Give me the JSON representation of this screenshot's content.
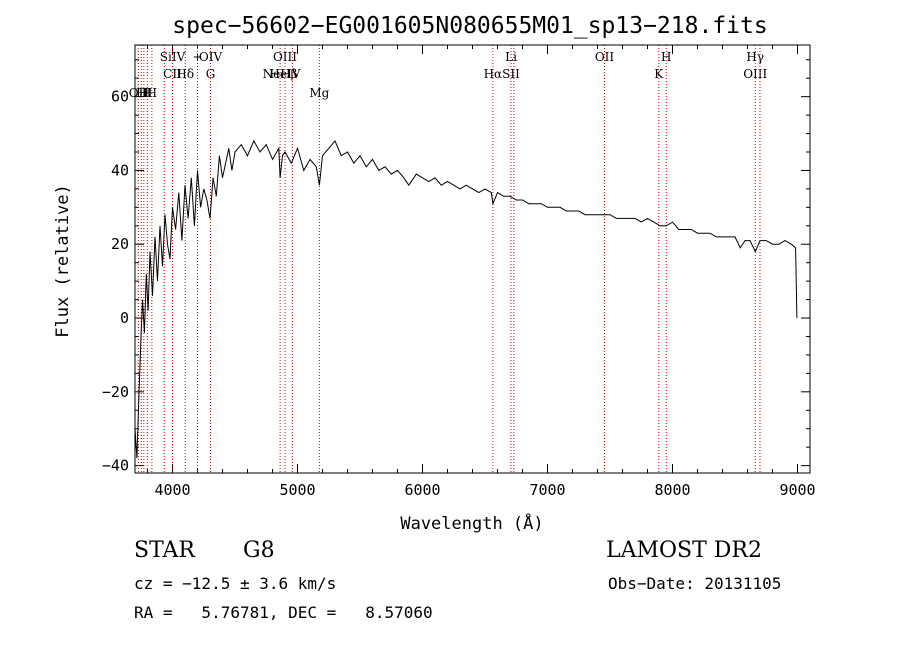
{
  "chart_data": {
    "type": "line",
    "title": "spec−56602−EG001605N080655M01_sp13−218.fits",
    "xlabel": "Wavelength (Å)",
    "ylabel": "Flux (relative)",
    "xlim": [
      3700,
      9100
    ],
    "ylim": [
      -42,
      74
    ],
    "xticks": [
      4000,
      5000,
      6000,
      7000,
      8000,
      9000
    ],
    "yticks": [
      -40,
      -20,
      0,
      20,
      40,
      60
    ],
    "grid": false,
    "series": [
      {
        "color": "#000000",
        "x": [
          3700,
          3715,
          3730,
          3745,
          3760,
          3775,
          3790,
          3805,
          3820,
          3840,
          3860,
          3880,
          3900,
          3920,
          3940,
          3960,
          3980,
          4000,
          4025,
          4050,
          4075,
          4100,
          4125,
          4150,
          4175,
          4200,
          4225,
          4250,
          4275,
          4300,
          4325,
          4350,
          4375,
          4400,
          4425,
          4450,
          4475,
          4500,
          4550,
          4600,
          4650,
          4700,
          4750,
          4800,
          4850,
          4861,
          4880,
          4900,
          4950,
          5000,
          5050,
          5100,
          5150,
          5175,
          5200,
          5250,
          5300,
          5350,
          5400,
          5450,
          5500,
          5550,
          5600,
          5650,
          5700,
          5750,
          5800,
          5850,
          5890,
          5950,
          6000,
          6050,
          6100,
          6150,
          6200,
          6250,
          6300,
          6350,
          6400,
          6450,
          6500,
          6550,
          6563,
          6600,
          6650,
          6700,
          6750,
          6800,
          6850,
          6900,
          6950,
          7000,
          7050,
          7100,
          7150,
          7200,
          7250,
          7300,
          7350,
          7400,
          7450,
          7500,
          7550,
          7600,
          7650,
          7700,
          7750,
          7800,
          7850,
          7900,
          7950,
          8000,
          8050,
          8100,
          8150,
          8200,
          8250,
          8300,
          8350,
          8400,
          8450,
          8500,
          8542,
          8580,
          8620,
          8662,
          8700,
          8750,
          8800,
          8850,
          8900,
          8950,
          8985,
          8995
        ],
        "y": [
          -30,
          -38,
          -22,
          -8,
          5,
          -4,
          12,
          2,
          18,
          6,
          22,
          10,
          25,
          14,
          28,
          20,
          16,
          30,
          24,
          34,
          21,
          36,
          27,
          38,
          25,
          40,
          30,
          35,
          32,
          27,
          38,
          33,
          44,
          38,
          42,
          46,
          40,
          45,
          47,
          44,
          48,
          45,
          47,
          43,
          46,
          38,
          44,
          45,
          42,
          46,
          40,
          43,
          41,
          36,
          44,
          46,
          48,
          44,
          45,
          42,
          44,
          41,
          43,
          40,
          41,
          39,
          40,
          38,
          36,
          39,
          38,
          37,
          38,
          36,
          37,
          36,
          35,
          36,
          35,
          34,
          35,
          34,
          31,
          34,
          33,
          33,
          32,
          32,
          31,
          31,
          31,
          30,
          30,
          30,
          29,
          29,
          29,
          28,
          28,
          28,
          28,
          28,
          27,
          27,
          27,
          27,
          26,
          27,
          26,
          25,
          25,
          26,
          24,
          24,
          24,
          23,
          23,
          23,
          22,
          22,
          22,
          22,
          19,
          21,
          21,
          18,
          21,
          21,
          20,
          20,
          21,
          20,
          19,
          0
        ]
      }
    ],
    "lines": [
      {
        "x": 3727,
        "labels": [
          "OII"
        ],
        "row": 3
      },
      {
        "x": 3750,
        "labels": [
          "H"
        ],
        "row": 3
      },
      {
        "x": 3771,
        "labels": [
          "H"
        ],
        "row": 3
      },
      {
        "x": 3798,
        "labels": [
          "H"
        ],
        "row": 3
      },
      {
        "x": 3835,
        "labels": [
          "H"
        ],
        "row": 3
      },
      {
        "x": 3934,
        "labels": [],
        "row": 3
      },
      {
        "x": 4000,
        "labels": [
          "SiIV",
          "CII"
        ],
        "row": 1
      },
      {
        "x": 4102,
        "labels": [
          "Hδ"
        ],
        "row": 2
      },
      {
        "x": 4200,
        "labels": [
          "+"
        ],
        "row": 1
      },
      {
        "x": 4304,
        "labels": [
          "OIV",
          "G"
        ],
        "row": 1
      },
      {
        "x": 4861,
        "labels": [
          "NeHβ"
        ],
        "row": 2
      },
      {
        "x": 4900,
        "labels": [
          "OIII",
          "HeIV"
        ],
        "row": 1
      },
      {
        "x": 4959,
        "labels": [],
        "row": 1
      },
      {
        "x": 5175,
        "labels": [
          "Mg"
        ],
        "row": 3
      },
      {
        "x": 6563,
        "labels": [
          "Hα"
        ],
        "row": 2
      },
      {
        "x": 6708,
        "labels": [
          "Li",
          "SII"
        ],
        "row": 1
      },
      {
        "x": 6731,
        "labels": [],
        "row": 1
      },
      {
        "x": 7456,
        "labels": [
          "OII"
        ],
        "row": 1
      },
      {
        "x": 7890,
        "labels": [
          "K"
        ],
        "row": 2
      },
      {
        "x": 7950,
        "labels": [
          "H"
        ],
        "row": 1
      },
      {
        "x": 8662,
        "labels": [
          "Hγ",
          "OIII"
        ],
        "row": 1
      },
      {
        "x": 8700,
        "labels": [],
        "row": 1
      }
    ]
  },
  "info": {
    "object_class": "STAR",
    "subclass": "G8",
    "survey": "LAMOST DR2",
    "redshift": "cz = −12.5 ± 3.6 km/s",
    "obs_date": "Obs−Date: 20131105",
    "coords": "RA =   5.76781, DEC =   8.57060"
  }
}
